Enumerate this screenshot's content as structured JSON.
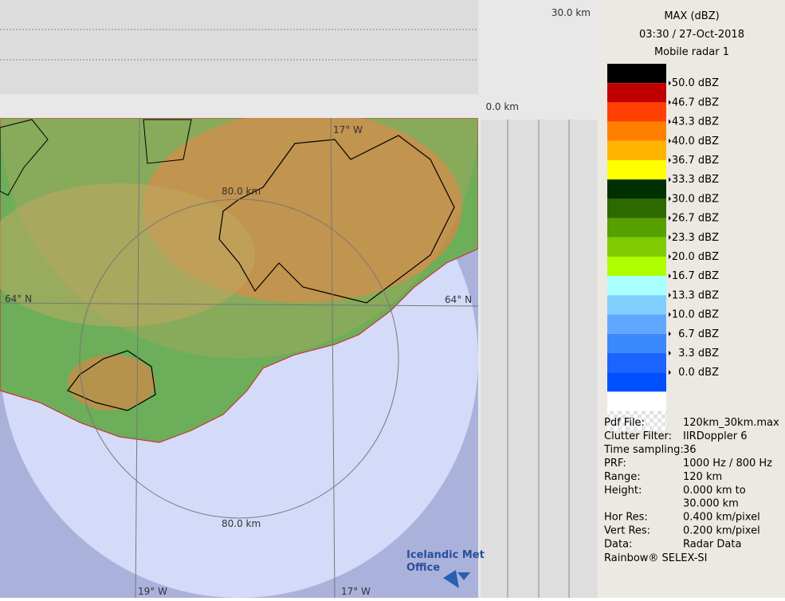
{
  "map": {
    "top_range_label": "30.0 km",
    "side_range_label": "0.0 km",
    "ring_labels": [
      "80.0 km",
      "80.0 km"
    ],
    "lon_labels_top": [
      "17° W"
    ],
    "lat_labels": [
      "64° N",
      "64° N"
    ],
    "lon_labels_bottom": [
      "19° W",
      "17° W"
    ],
    "logo": [
      "Icelandic Met",
      "Office"
    ]
  },
  "legend": {
    "title": [
      "MAX (dBZ)",
      "03:30 / 27-Oct-2018",
      "Mobile radar 1"
    ],
    "colors": [
      "#000000",
      "#c00000",
      "#ff4000",
      "#ff8000",
      "#ffb400",
      "#ffff00",
      "#003000",
      "#2c6a00",
      "#56a000",
      "#80cc00",
      "#b0ff00",
      "#a8ffff",
      "#80d0ff",
      "#60a8ff",
      "#3c88ff",
      "#1c64ff",
      "#0050ff",
      "#ffffff"
    ],
    "labels": [
      "50.0 dBZ",
      "46.7 dBZ",
      "43.3 dBZ",
      "40.0 dBZ",
      "36.7 dBZ",
      "33.3 dBZ",
      "30.0 dBZ",
      "26.7 dBZ",
      "23.3 dBZ",
      "20.0 dBZ",
      "16.7 dBZ",
      "13.3 dBZ",
      "10.0 dBZ",
      "6.7 dBZ",
      "3.3 dBZ",
      "0.0 dBZ"
    ]
  },
  "info": {
    "rows": [
      [
        "Pdf File:",
        "120km_30km.max"
      ],
      [
        "Clutter Filter:",
        "IIRDoppler 6"
      ],
      [
        "Time sampling:",
        "36"
      ],
      [
        "PRF:",
        "1000 Hz / 800 Hz"
      ],
      [
        "Range:",
        "120 km"
      ],
      [
        "Height:",
        "0.000 km to",
        "30.000 km"
      ],
      [
        "Hor Res:",
        "0.400 km/pixel"
      ],
      [
        "Vert Res:",
        "0.200 km/pixel"
      ],
      [
        "Data:",
        "Radar Data"
      ]
    ],
    "footer": "Rainbow® SELEX-SI"
  }
}
